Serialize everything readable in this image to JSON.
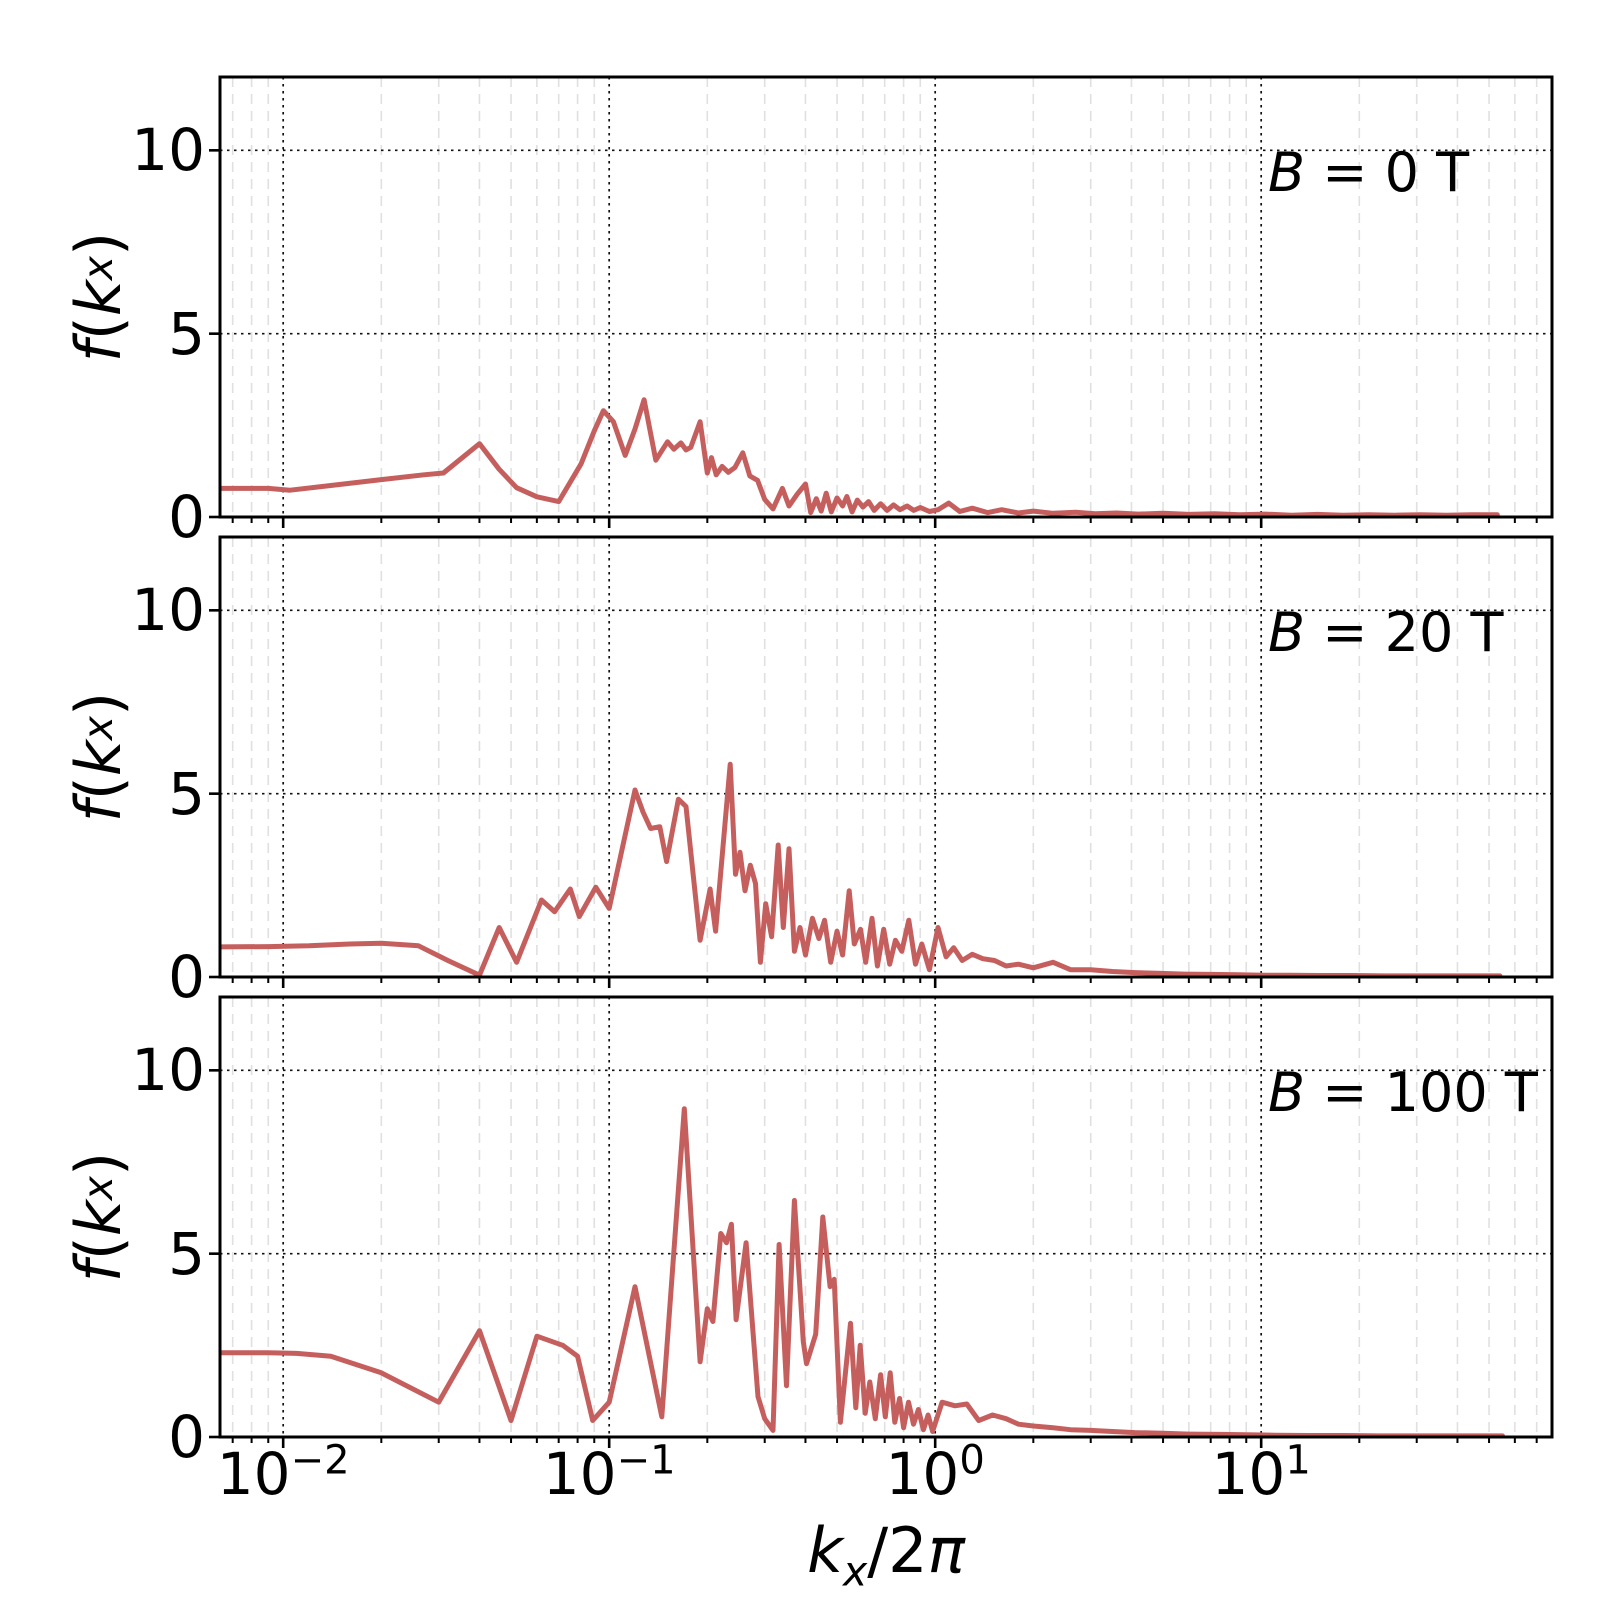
{
  "figure": {
    "background": "#ffffff",
    "line_color": "#C55F5E",
    "grid_major_color": "#111111",
    "grid_minor_color": "#e0e0e0",
    "spine_color": "#000000"
  },
  "x_axis": {
    "label": "k_x/2π",
    "label_parts": {
      "var": "k",
      "sub": "x",
      "rest": "/2",
      "pi": "π"
    },
    "scale": "log",
    "range": [
      0.0064,
      78
    ],
    "tick_labels": [
      {
        "base": "10",
        "exp": "−2",
        "value": 0.01
      },
      {
        "base": "10",
        "exp": "−1",
        "value": 0.1
      },
      {
        "base": "10",
        "exp": "0",
        "value": 1
      },
      {
        "base": "10",
        "exp": "1",
        "value": 10
      }
    ]
  },
  "y_axis": {
    "label": "f(k_x)",
    "label_parts": {
      "func": "f",
      "open": "(",
      "var": "k",
      "sub": "x",
      "close": ")"
    },
    "range": [
      0,
      12
    ],
    "ticks": [
      10,
      5,
      0
    ]
  },
  "panels": [
    {
      "label": "B = 0 T",
      "label_var": "B",
      "label_rest": " = 0 T"
    },
    {
      "label": "B = 20 T",
      "label_var": "B",
      "label_rest": " = 20 T"
    },
    {
      "label": "B = 100 T",
      "label_var": "B",
      "label_rest": " = 100 T"
    }
  ],
  "chart_data": [
    {
      "type": "line",
      "title": "B = 0 T",
      "xlabel": "k_x/2π",
      "ylabel": "f(k_x)",
      "xscale": "log",
      "xlim": [
        0.0064,
        78
      ],
      "ylim": [
        0,
        12
      ],
      "xticks": [
        0.01,
        0.1,
        1,
        10
      ],
      "yticks": [
        0,
        5,
        10
      ],
      "grid": true,
      "legend": "none",
      "color": "#C55F5E",
      "points": [
        [
          0.0064,
          0.78
        ],
        [
          0.009,
          0.78
        ],
        [
          0.0105,
          0.73
        ],
        [
          0.014,
          0.86
        ],
        [
          0.02,
          1.02
        ],
        [
          0.027,
          1.15
        ],
        [
          0.031,
          1.2
        ],
        [
          0.04,
          2.0
        ],
        [
          0.046,
          1.3
        ],
        [
          0.052,
          0.8
        ],
        [
          0.06,
          0.55
        ],
        [
          0.07,
          0.42
        ],
        [
          0.082,
          1.45
        ],
        [
          0.09,
          2.35
        ],
        [
          0.096,
          2.9
        ],
        [
          0.103,
          2.6
        ],
        [
          0.112,
          1.68
        ],
        [
          0.12,
          2.4
        ],
        [
          0.128,
          3.2
        ],
        [
          0.139,
          1.55
        ],
        [
          0.151,
          2.05
        ],
        [
          0.158,
          1.85
        ],
        [
          0.166,
          2.02
        ],
        [
          0.172,
          1.83
        ],
        [
          0.178,
          1.9
        ],
        [
          0.19,
          2.6
        ],
        [
          0.2,
          1.2
        ],
        [
          0.206,
          1.62
        ],
        [
          0.213,
          1.15
        ],
        [
          0.222,
          1.38
        ],
        [
          0.232,
          1.22
        ],
        [
          0.243,
          1.35
        ],
        [
          0.257,
          1.75
        ],
        [
          0.27,
          1.12
        ],
        [
          0.285,
          1.0
        ],
        [
          0.3,
          0.48
        ],
        [
          0.318,
          0.22
        ],
        [
          0.34,
          0.78
        ],
        [
          0.356,
          0.3
        ],
        [
          0.377,
          0.62
        ],
        [
          0.4,
          0.9
        ],
        [
          0.415,
          0.12
        ],
        [
          0.432,
          0.5
        ],
        [
          0.447,
          0.16
        ],
        [
          0.463,
          0.65
        ],
        [
          0.48,
          0.14
        ],
        [
          0.5,
          0.52
        ],
        [
          0.52,
          0.3
        ],
        [
          0.536,
          0.56
        ],
        [
          0.556,
          0.14
        ],
        [
          0.577,
          0.46
        ],
        [
          0.6,
          0.27
        ],
        [
          0.625,
          0.42
        ],
        [
          0.65,
          0.18
        ],
        [
          0.68,
          0.36
        ],
        [
          0.712,
          0.18
        ],
        [
          0.745,
          0.33
        ],
        [
          0.78,
          0.2
        ],
        [
          0.82,
          0.3
        ],
        [
          0.86,
          0.18
        ],
        [
          0.9,
          0.26
        ],
        [
          0.96,
          0.15
        ],
        [
          1.02,
          0.2
        ],
        [
          1.1,
          0.38
        ],
        [
          1.19,
          0.15
        ],
        [
          1.3,
          0.24
        ],
        [
          1.45,
          0.12
        ],
        [
          1.6,
          0.2
        ],
        [
          1.8,
          0.11
        ],
        [
          2.0,
          0.16
        ],
        [
          2.3,
          0.1
        ],
        [
          2.7,
          0.13
        ],
        [
          3.1,
          0.09
        ],
        [
          3.6,
          0.11
        ],
        [
          4.2,
          0.08
        ],
        [
          5.0,
          0.1
        ],
        [
          6.0,
          0.07
        ],
        [
          7.2,
          0.09
        ],
        [
          8.6,
          0.06
        ],
        [
          10.3,
          0.08
        ],
        [
          12.4,
          0.05
        ],
        [
          14.9,
          0.07
        ],
        [
          17.8,
          0.05
        ],
        [
          21.4,
          0.06
        ],
        [
          25.7,
          0.05
        ],
        [
          30.8,
          0.06
        ],
        [
          37,
          0.05
        ],
        [
          44,
          0.06
        ],
        [
          53,
          0.06
        ]
      ]
    },
    {
      "type": "line",
      "title": "B = 20 T",
      "xlabel": "k_x/2π",
      "ylabel": "f(k_x)",
      "xscale": "log",
      "xlim": [
        0.0064,
        78
      ],
      "ylim": [
        0,
        12
      ],
      "xticks": [
        0.01,
        0.1,
        1,
        10
      ],
      "yticks": [
        0,
        5,
        10
      ],
      "grid": true,
      "legend": "none",
      "color": "#C55F5E",
      "points": [
        [
          0.0064,
          0.82
        ],
        [
          0.009,
          0.83
        ],
        [
          0.012,
          0.85
        ],
        [
          0.016,
          0.9
        ],
        [
          0.02,
          0.92
        ],
        [
          0.026,
          0.85
        ],
        [
          0.032,
          0.45
        ],
        [
          0.04,
          0.05
        ],
        [
          0.046,
          1.35
        ],
        [
          0.052,
          0.4
        ],
        [
          0.062,
          2.1
        ],
        [
          0.068,
          1.78
        ],
        [
          0.076,
          2.4
        ],
        [
          0.081,
          1.65
        ],
        [
          0.091,
          2.45
        ],
        [
          0.1,
          1.87
        ],
        [
          0.12,
          5.1
        ],
        [
          0.127,
          4.5
        ],
        [
          0.134,
          4.05
        ],
        [
          0.143,
          4.1
        ],
        [
          0.15,
          3.15
        ],
        [
          0.163,
          4.85
        ],
        [
          0.172,
          4.65
        ],
        [
          0.19,
          1.0
        ],
        [
          0.204,
          2.4
        ],
        [
          0.212,
          1.25
        ],
        [
          0.235,
          5.8
        ],
        [
          0.244,
          2.8
        ],
        [
          0.252,
          3.4
        ],
        [
          0.261,
          2.35
        ],
        [
          0.271,
          3.05
        ],
        [
          0.281,
          2.55
        ],
        [
          0.291,
          0.4
        ],
        [
          0.302,
          2.0
        ],
        [
          0.315,
          1.1
        ],
        [
          0.33,
          3.6
        ],
        [
          0.342,
          1.35
        ],
        [
          0.356,
          3.5
        ],
        [
          0.37,
          0.7
        ],
        [
          0.385,
          1.35
        ],
        [
          0.4,
          0.6
        ],
        [
          0.42,
          1.6
        ],
        [
          0.44,
          1.05
        ],
        [
          0.458,
          1.55
        ],
        [
          0.478,
          0.4
        ],
        [
          0.5,
          1.25
        ],
        [
          0.52,
          0.6
        ],
        [
          0.545,
          2.35
        ],
        [
          0.565,
          0.9
        ],
        [
          0.59,
          1.3
        ],
        [
          0.612,
          0.4
        ],
        [
          0.64,
          1.6
        ],
        [
          0.665,
          0.3
        ],
        [
          0.695,
          1.3
        ],
        [
          0.725,
          0.35
        ],
        [
          0.755,
          1.0
        ],
        [
          0.79,
          0.7
        ],
        [
          0.83,
          1.55
        ],
        [
          0.87,
          0.35
        ],
        [
          0.91,
          0.9
        ],
        [
          0.96,
          0.2
        ],
        [
          1.02,
          1.35
        ],
        [
          1.08,
          0.55
        ],
        [
          1.14,
          0.8
        ],
        [
          1.21,
          0.45
        ],
        [
          1.3,
          0.62
        ],
        [
          1.4,
          0.5
        ],
        [
          1.52,
          0.45
        ],
        [
          1.65,
          0.3
        ],
        [
          1.8,
          0.35
        ],
        [
          2.0,
          0.25
        ],
        [
          2.3,
          0.4
        ],
        [
          2.6,
          0.2
        ],
        [
          3.0,
          0.2
        ],
        [
          3.5,
          0.15
        ],
        [
          4.1,
          0.12
        ],
        [
          4.8,
          0.1
        ],
        [
          5.8,
          0.08
        ],
        [
          7.0,
          0.07
        ],
        [
          8.5,
          0.06
        ],
        [
          10.2,
          0.05
        ],
        [
          12.3,
          0.05
        ],
        [
          15,
          0.04
        ],
        [
          19,
          0.04
        ],
        [
          24,
          0.03
        ],
        [
          30,
          0.03
        ],
        [
          38,
          0.03
        ],
        [
          47,
          0.03
        ],
        [
          54,
          0.03
        ]
      ]
    },
    {
      "type": "line",
      "title": "B = 100 T",
      "xlabel": "k_x/2π",
      "ylabel": "f(k_x)",
      "xscale": "log",
      "xlim": [
        0.0064,
        78
      ],
      "ylim": [
        0,
        12
      ],
      "xticks": [
        0.01,
        0.1,
        1,
        10
      ],
      "yticks": [
        0,
        5,
        10
      ],
      "grid": true,
      "legend": "none",
      "color": "#C55F5E",
      "points": [
        [
          0.0064,
          2.3
        ],
        [
          0.009,
          2.3
        ],
        [
          0.011,
          2.28
        ],
        [
          0.014,
          2.2
        ],
        [
          0.02,
          1.75
        ],
        [
          0.03,
          0.95
        ],
        [
          0.04,
          2.9
        ],
        [
          0.05,
          0.45
        ],
        [
          0.06,
          2.75
        ],
        [
          0.072,
          2.5
        ],
        [
          0.08,
          2.2
        ],
        [
          0.089,
          0.45
        ],
        [
          0.1,
          0.95
        ],
        [
          0.12,
          4.1
        ],
        [
          0.145,
          0.55
        ],
        [
          0.17,
          8.95
        ],
        [
          0.19,
          2.05
        ],
        [
          0.2,
          3.5
        ],
        [
          0.208,
          3.15
        ],
        [
          0.22,
          5.55
        ],
        [
          0.229,
          5.3
        ],
        [
          0.237,
          5.8
        ],
        [
          0.245,
          3.2
        ],
        [
          0.263,
          5.3
        ],
        [
          0.286,
          1.1
        ],
        [
          0.3,
          0.5
        ],
        [
          0.318,
          0.18
        ],
        [
          0.332,
          5.25
        ],
        [
          0.35,
          1.4
        ],
        [
          0.37,
          6.45
        ],
        [
          0.394,
          2.6
        ],
        [
          0.403,
          2.0
        ],
        [
          0.43,
          2.8
        ],
        [
          0.452,
          6.0
        ],
        [
          0.476,
          4.1
        ],
        [
          0.49,
          4.3
        ],
        [
          0.512,
          0.4
        ],
        [
          0.55,
          3.1
        ],
        [
          0.571,
          0.8
        ],
        [
          0.589,
          2.5
        ],
        [
          0.61,
          0.65
        ],
        [
          0.63,
          1.5
        ],
        [
          0.655,
          0.5
        ],
        [
          0.68,
          1.7
        ],
        [
          0.703,
          0.55
        ],
        [
          0.728,
          1.75
        ],
        [
          0.752,
          0.4
        ],
        [
          0.778,
          1.05
        ],
        [
          0.8,
          0.25
        ],
        [
          0.828,
          0.95
        ],
        [
          0.858,
          0.35
        ],
        [
          0.888,
          0.75
        ],
        [
          0.92,
          0.2
        ],
        [
          0.951,
          0.6
        ],
        [
          0.982,
          0.15
        ],
        [
          1.05,
          0.95
        ],
        [
          1.15,
          0.85
        ],
        [
          1.25,
          0.9
        ],
        [
          1.36,
          0.45
        ],
        [
          1.5,
          0.6
        ],
        [
          1.65,
          0.5
        ],
        [
          1.8,
          0.35
        ],
        [
          2.0,
          0.3
        ],
        [
          2.3,
          0.25
        ],
        [
          2.6,
          0.2
        ],
        [
          3.0,
          0.18
        ],
        [
          3.5,
          0.15
        ],
        [
          4.1,
          0.12
        ],
        [
          5.0,
          0.1
        ],
        [
          6.0,
          0.08
        ],
        [
          7.5,
          0.07
        ],
        [
          9.0,
          0.06
        ],
        [
          11,
          0.05
        ],
        [
          14,
          0.04
        ],
        [
          18,
          0.04
        ],
        [
          23,
          0.03
        ],
        [
          30,
          0.03
        ],
        [
          40,
          0.03
        ],
        [
          50,
          0.03
        ],
        [
          55,
          0.03
        ]
      ]
    }
  ]
}
